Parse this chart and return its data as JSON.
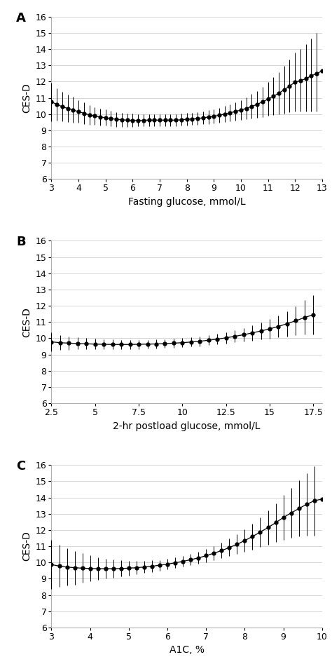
{
  "panel_A": {
    "label": "A",
    "xlabel": "Fasting glucose, mmol/L",
    "ylabel": "CES-D",
    "xlim": [
      3,
      13
    ],
    "ylim": [
      6,
      16
    ],
    "xticks": [
      3,
      4,
      5,
      6,
      7,
      8,
      9,
      10,
      11,
      12,
      13
    ],
    "xticklabels": [
      "3",
      "4",
      "5",
      "6",
      "7",
      "8",
      "9",
      "10",
      "11",
      "12",
      "13"
    ],
    "yticks": [
      6,
      7,
      8,
      9,
      10,
      11,
      12,
      13,
      14,
      15,
      16
    ],
    "yticklabels": [
      "6",
      "7",
      "8",
      "9",
      "10",
      "11",
      "12",
      "13",
      "14",
      "15",
      "16"
    ],
    "x": [
      3.0,
      3.2,
      3.4,
      3.6,
      3.8,
      4.0,
      4.2,
      4.4,
      4.6,
      4.8,
      5.0,
      5.2,
      5.4,
      5.6,
      5.8,
      6.0,
      6.2,
      6.4,
      6.6,
      6.8,
      7.0,
      7.2,
      7.4,
      7.6,
      7.8,
      8.0,
      8.2,
      8.4,
      8.6,
      8.8,
      9.0,
      9.2,
      9.4,
      9.6,
      9.8,
      10.0,
      10.2,
      10.4,
      10.6,
      10.8,
      11.0,
      11.2,
      11.4,
      11.6,
      11.8,
      12.0,
      12.2,
      12.4,
      12.6,
      12.8,
      13.0
    ],
    "y": [
      10.75,
      10.6,
      10.45,
      10.35,
      10.25,
      10.15,
      10.05,
      9.95,
      9.88,
      9.82,
      9.78,
      9.72,
      9.68,
      9.65,
      9.63,
      9.62,
      9.62,
      9.62,
      9.63,
      9.63,
      9.63,
      9.63,
      9.63,
      9.63,
      9.65,
      9.68,
      9.7,
      9.73,
      9.77,
      9.82,
      9.87,
      9.93,
      10.0,
      10.08,
      10.16,
      10.25,
      10.35,
      10.47,
      10.6,
      10.75,
      10.92,
      11.1,
      11.28,
      11.5,
      11.72,
      11.97,
      12.05,
      12.18,
      12.35,
      12.5,
      12.65
    ],
    "yerr_lo": [
      1.2,
      1.0,
      0.9,
      0.85,
      0.8,
      0.7,
      0.65,
      0.6,
      0.55,
      0.52,
      0.5,
      0.48,
      0.45,
      0.43,
      0.42,
      0.4,
      0.38,
      0.37,
      0.37,
      0.36,
      0.36,
      0.36,
      0.36,
      0.37,
      0.37,
      0.38,
      0.38,
      0.39,
      0.4,
      0.42,
      0.44,
      0.46,
      0.49,
      0.53,
      0.57,
      0.62,
      0.68,
      0.75,
      0.83,
      0.93,
      1.04,
      1.16,
      1.3,
      1.45,
      1.62,
      1.8,
      1.88,
      2.02,
      2.18,
      2.35,
      2.52
    ],
    "yerr_hi": [
      1.2,
      1.0,
      0.9,
      0.85,
      0.8,
      0.7,
      0.65,
      0.6,
      0.55,
      0.52,
      0.5,
      0.48,
      0.45,
      0.43,
      0.42,
      0.4,
      0.38,
      0.37,
      0.37,
      0.36,
      0.36,
      0.36,
      0.36,
      0.37,
      0.37,
      0.38,
      0.38,
      0.39,
      0.4,
      0.42,
      0.44,
      0.46,
      0.49,
      0.53,
      0.57,
      0.62,
      0.68,
      0.75,
      0.83,
      0.93,
      1.04,
      1.16,
      1.3,
      1.45,
      1.62,
      1.8,
      1.95,
      2.12,
      2.3,
      2.5,
      1.95
    ]
  },
  "panel_B": {
    "label": "B",
    "xlabel": "2-hr postload glucose, mmol/L",
    "ylabel": "CES-D",
    "xlim": [
      2.5,
      18.0
    ],
    "ylim": [
      6,
      16
    ],
    "xticks": [
      2.5,
      5.0,
      7.5,
      10.0,
      12.5,
      15.0,
      17.5
    ],
    "xticklabels": [
      "2.5",
      "5",
      "7.5",
      "10",
      "12.5",
      "15",
      "17.5"
    ],
    "yticks": [
      6,
      7,
      8,
      9,
      10,
      11,
      12,
      13,
      14,
      15,
      16
    ],
    "yticklabels": [
      "6",
      "7",
      "8",
      "9",
      "10",
      "11",
      "12",
      "13",
      "14",
      "15",
      "16"
    ],
    "x": [
      2.5,
      3.0,
      3.5,
      4.0,
      4.5,
      5.0,
      5.5,
      6.0,
      6.5,
      7.0,
      7.5,
      8.0,
      8.5,
      9.0,
      9.5,
      10.0,
      10.5,
      11.0,
      11.5,
      12.0,
      12.5,
      13.0,
      13.5,
      14.0,
      14.5,
      15.0,
      15.5,
      16.0,
      16.5,
      17.0,
      17.5
    ],
    "y": [
      9.78,
      9.73,
      9.7,
      9.68,
      9.66,
      9.64,
      9.63,
      9.62,
      9.62,
      9.62,
      9.63,
      9.64,
      9.65,
      9.67,
      9.7,
      9.73,
      9.77,
      9.82,
      9.88,
      9.95,
      10.03,
      10.12,
      10.22,
      10.33,
      10.45,
      10.58,
      10.73,
      10.9,
      11.08,
      11.28,
      11.45
    ],
    "yerr_lo": [
      0.6,
      0.45,
      0.4,
      0.37,
      0.35,
      0.33,
      0.32,
      0.3,
      0.29,
      0.28,
      0.28,
      0.27,
      0.27,
      0.27,
      0.27,
      0.28,
      0.28,
      0.3,
      0.31,
      0.33,
      0.35,
      0.38,
      0.42,
      0.47,
      0.53,
      0.6,
      0.68,
      0.78,
      0.9,
      1.05,
      1.22
    ],
    "yerr_hi": [
      0.6,
      0.45,
      0.4,
      0.37,
      0.35,
      0.33,
      0.32,
      0.3,
      0.29,
      0.28,
      0.28,
      0.27,
      0.27,
      0.27,
      0.27,
      0.28,
      0.28,
      0.3,
      0.31,
      0.33,
      0.35,
      0.38,
      0.42,
      0.47,
      0.53,
      0.6,
      0.68,
      0.78,
      0.9,
      1.05,
      1.22
    ]
  },
  "panel_C": {
    "label": "C",
    "xlabel": "A1C, %",
    "ylabel": "CES-D",
    "xlim": [
      3,
      10
    ],
    "ylim": [
      6,
      16
    ],
    "xticks": [
      3,
      4,
      5,
      6,
      7,
      8,
      9,
      10
    ],
    "xticklabels": [
      "3",
      "4",
      "5",
      "6",
      "7",
      "8",
      "9",
      "10"
    ],
    "yticks": [
      6,
      7,
      8,
      9,
      10,
      11,
      12,
      13,
      14,
      15,
      16
    ],
    "yticklabels": [
      "6",
      "7",
      "8",
      "9",
      "10",
      "11",
      "12",
      "13",
      "14",
      "15",
      "16"
    ],
    "x": [
      3.0,
      3.2,
      3.4,
      3.6,
      3.8,
      4.0,
      4.2,
      4.4,
      4.6,
      4.8,
      5.0,
      5.2,
      5.4,
      5.6,
      5.8,
      6.0,
      6.2,
      6.4,
      6.6,
      6.8,
      7.0,
      7.2,
      7.4,
      7.6,
      7.8,
      8.0,
      8.2,
      8.4,
      8.6,
      8.8,
      9.0,
      9.2,
      9.4,
      9.6,
      9.8,
      10.0
    ],
    "y": [
      9.87,
      9.78,
      9.72,
      9.68,
      9.65,
      9.63,
      9.62,
      9.62,
      9.62,
      9.63,
      9.65,
      9.68,
      9.72,
      9.77,
      9.83,
      9.9,
      9.98,
      10.07,
      10.17,
      10.28,
      10.42,
      10.57,
      10.73,
      10.92,
      11.12,
      11.35,
      11.6,
      11.87,
      12.15,
      12.45,
      12.77,
      13.05,
      13.32,
      13.58,
      13.8,
      13.9
    ],
    "yerr_lo": [
      1.5,
      1.3,
      1.15,
      1.03,
      0.9,
      0.8,
      0.7,
      0.62,
      0.55,
      0.49,
      0.44,
      0.4,
      0.37,
      0.35,
      0.33,
      0.33,
      0.32,
      0.33,
      0.35,
      0.37,
      0.4,
      0.44,
      0.48,
      0.54,
      0.61,
      0.7,
      0.8,
      0.92,
      1.05,
      1.2,
      1.37,
      1.55,
      1.73,
      1.93,
      2.13,
      2.35
    ],
    "yerr_hi": [
      1.5,
      1.3,
      1.15,
      1.03,
      0.9,
      0.8,
      0.7,
      0.62,
      0.55,
      0.49,
      0.44,
      0.4,
      0.37,
      0.35,
      0.33,
      0.33,
      0.32,
      0.33,
      0.35,
      0.37,
      0.4,
      0.44,
      0.48,
      0.54,
      0.61,
      0.7,
      0.8,
      0.92,
      1.05,
      1.2,
      1.37,
      1.55,
      1.73,
      1.93,
      2.13,
      1.65
    ]
  },
  "line_color": "#000000",
  "marker_color": "#000000",
  "error_color": "#000000",
  "background_color": "#ffffff",
  "grid_color": "#d0d0d0",
  "marker_size": 3.5,
  "line_width": 0.9,
  "cap_size": 0,
  "error_line_width": 0.7,
  "label_fontsize": 10,
  "tick_fontsize": 9,
  "panel_label_fontsize": 13
}
